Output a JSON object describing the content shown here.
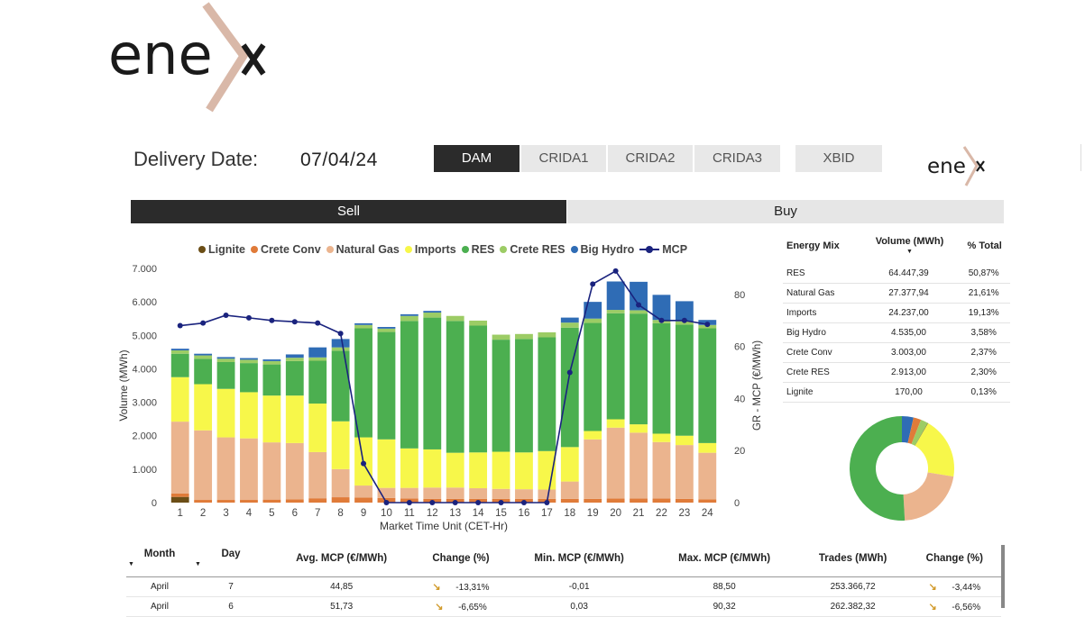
{
  "brand": {
    "logo_text": "ene"
  },
  "header": {
    "delivery_label": "Delivery Date:",
    "delivery_date": "07/04/24",
    "tabs": [
      "DAM",
      "CRIDA1",
      "CRIDA2",
      "CRIDA3",
      "XBID"
    ],
    "active_tab": "DAM"
  },
  "side_toggle": {
    "sell": "Sell",
    "buy": "Buy",
    "active": "Sell"
  },
  "chart_data": {
    "type": "bar",
    "stacked": true,
    "xlabel": "Market Time Unit (CET-Hr)",
    "ylabel": "Volume (MWh)",
    "y2label": "GR - MCP (€/MWh)",
    "ylim": [
      0,
      7000
    ],
    "y2lim": [
      0,
      90
    ],
    "y_ticks": [
      "0",
      "1.000",
      "2.000",
      "3.000",
      "4.000",
      "5.000",
      "6.000",
      "7.000"
    ],
    "y2_ticks": [
      "0",
      "20",
      "40",
      "60",
      "80"
    ],
    "categories": [
      "1",
      "2",
      "3",
      "4",
      "5",
      "6",
      "7",
      "8",
      "9",
      "10",
      "11",
      "12",
      "13",
      "14",
      "15",
      "16",
      "17",
      "18",
      "19",
      "20",
      "21",
      "22",
      "23",
      "24"
    ],
    "legend": "top",
    "grid": false,
    "series": [
      {
        "name": "Lignite",
        "color": "#6b4e16",
        "values": [
          170,
          0,
          0,
          0,
          0,
          0,
          0,
          0,
          0,
          0,
          0,
          0,
          0,
          0,
          0,
          0,
          0,
          0,
          0,
          0,
          0,
          0,
          0,
          0
        ]
      },
      {
        "name": "Crete Conv",
        "color": "#e07b39",
        "values": [
          100,
          80,
          80,
          80,
          90,
          100,
          130,
          160,
          150,
          140,
          120,
          110,
          110,
          110,
          110,
          110,
          110,
          110,
          110,
          120,
          120,
          120,
          110,
          100
        ]
      },
      {
        "name": "Natural Gas",
        "color": "#ebb48e",
        "values": [
          2150,
          2080,
          1870,
          1840,
          1710,
          1680,
          1380,
          840,
          360,
          300,
          320,
          340,
          340,
          320,
          300,
          290,
          280,
          520,
          1780,
          2120,
          1970,
          1690,
          1610,
          1390
        ]
      },
      {
        "name": "Imports",
        "color": "#f7f74a",
        "values": [
          1330,
          1380,
          1450,
          1380,
          1400,
          1420,
          1450,
          1430,
          1440,
          1450,
          1180,
          1140,
          1040,
          1070,
          1110,
          1100,
          1150,
          1030,
          250,
          250,
          250,
          250,
          280,
          290
        ]
      },
      {
        "name": "RES",
        "color": "#4caf50",
        "values": [
          700,
          760,
          800,
          870,
          930,
          1030,
          1280,
          2110,
          3260,
          3210,
          3810,
          3940,
          3940,
          3790,
          3350,
          3390,
          3400,
          3570,
          3230,
          3170,
          3310,
          3300,
          3320,
          3430
        ]
      },
      {
        "name": "Crete RES",
        "color": "#9ccc65",
        "values": [
          100,
          100,
          100,
          100,
          100,
          100,
          100,
          100,
          100,
          100,
          150,
          150,
          150,
          150,
          150,
          150,
          150,
          150,
          130,
          100,
          100,
          100,
          100,
          100
        ]
      },
      {
        "name": "Big Hydro",
        "color": "#2f6cb5",
        "values": [
          50,
          50,
          50,
          50,
          50,
          100,
          300,
          250,
          50,
          50,
          50,
          50,
          0,
          0,
          0,
          0,
          0,
          150,
          500,
          850,
          850,
          750,
          600,
          150
        ]
      }
    ],
    "line": {
      "name": "MCP",
      "color": "#1a237e",
      "values": [
        68,
        69,
        72,
        71,
        70,
        69.5,
        69,
        65,
        15,
        0,
        0,
        0,
        0,
        0,
        0,
        0,
        0,
        50,
        84,
        89,
        76,
        70,
        70,
        68.5
      ]
    }
  },
  "energy_mix": {
    "headers": [
      "Energy Mix",
      "Volume (MWh)",
      "% Total"
    ],
    "rows": [
      {
        "name": "RES",
        "volume": "64.447,39",
        "pct": "50,87%",
        "share": 50.87,
        "color": "#4caf50"
      },
      {
        "name": "Natural Gas",
        "volume": "27.377,94",
        "pct": "21,61%",
        "share": 21.61,
        "color": "#ebb48e"
      },
      {
        "name": "Imports",
        "volume": "24.237,00",
        "pct": "19,13%",
        "share": 19.13,
        "color": "#f7f74a"
      },
      {
        "name": "Big Hydro",
        "volume": "4.535,00",
        "pct": "3,58%",
        "share": 3.58,
        "color": "#2f6cb5"
      },
      {
        "name": "Crete Conv",
        "volume": "3.003,00",
        "pct": "2,37%",
        "share": 2.37,
        "color": "#e07b39"
      },
      {
        "name": "Crete RES",
        "volume": "2.913,00",
        "pct": "2,30%",
        "share": 2.3,
        "color": "#9ccc65"
      },
      {
        "name": "Lignite",
        "volume": "170,00",
        "pct": "0,13%",
        "share": 0.13,
        "color": "#6b4e16"
      }
    ]
  },
  "summary_table": {
    "headers": [
      "Month",
      "Day",
      "Avg. MCP (€/MWh)",
      "Change (%)",
      "Min. MCP (€/MWh)",
      "Max. MCP (€/MWh)",
      "Trades (MWh)",
      "Change (%)"
    ],
    "rows": [
      [
        "April",
        "7",
        "44,85",
        "-13,31%",
        "-0,01",
        "88,50",
        "253.366,72",
        "-3,44%"
      ],
      [
        "April",
        "6",
        "51,73",
        "-6,65%",
        "0,03",
        "90,32",
        "262.382,32",
        "-6,56%"
      ]
    ]
  }
}
